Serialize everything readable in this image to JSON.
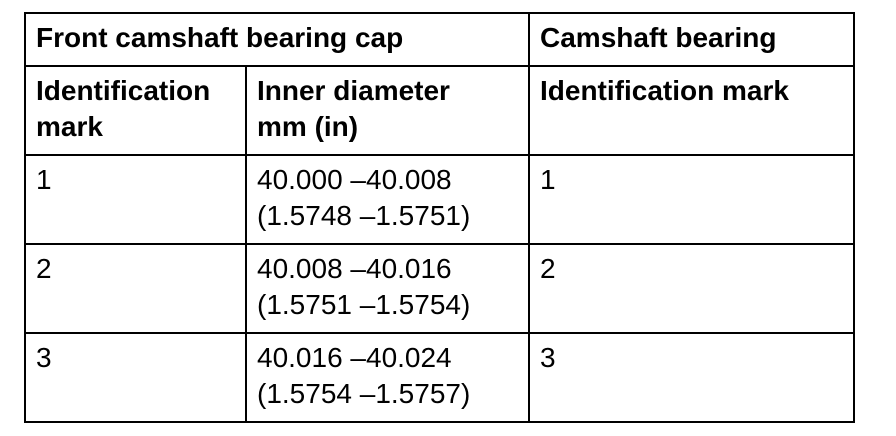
{
  "table": {
    "group_headers": {
      "front_cap": "Front camshaft bearing cap",
      "bearing": "Camshaft bearing"
    },
    "column_headers": {
      "cap_mark_line1": "Identification",
      "cap_mark_line2": "mark",
      "diameter_line1": "Inner diameter",
      "diameter_line2": "mm (in)",
      "bearing_mark": "Identification mark"
    },
    "rows": [
      {
        "cap_mark": "1",
        "diameter_mm": "40.000 –40.008",
        "diameter_in": "(1.5748 –1.5751)",
        "bearing_mark": "1"
      },
      {
        "cap_mark": "2",
        "diameter_mm": "40.008 –40.016",
        "diameter_in": "(1.5751 –1.5754)",
        "bearing_mark": "2"
      },
      {
        "cap_mark": "3",
        "diameter_mm": "40.016 –40.024",
        "diameter_in": "(1.5754 –1.5757)",
        "bearing_mark": "3"
      }
    ]
  }
}
